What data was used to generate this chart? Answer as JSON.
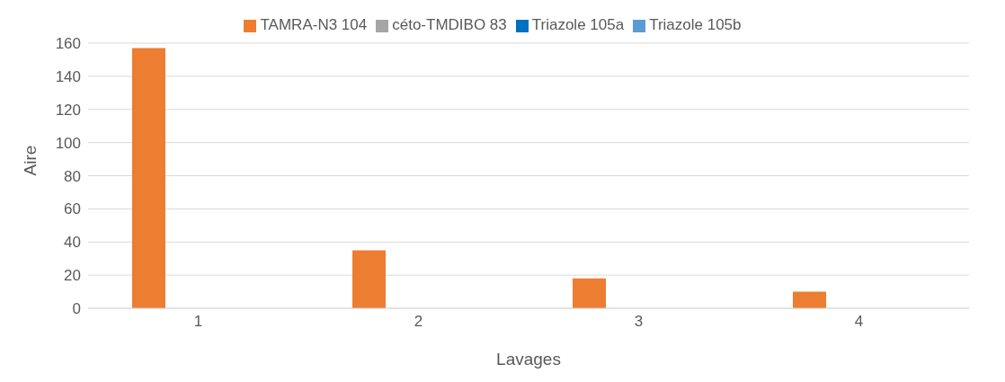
{
  "chart_data": {
    "type": "bar",
    "xlabel": "Lavages",
    "ylabel": "Aire",
    "categories": [
      "1",
      "2",
      "3",
      "4"
    ],
    "series": [
      {
        "name": "TAMRA-N3 104",
        "color": "#ed7d31",
        "values": [
          157,
          35,
          18,
          10
        ]
      },
      {
        "name": "céto-TMDIBO 83",
        "color": "#a5a5a5",
        "values": [
          0,
          0,
          0,
          0
        ]
      },
      {
        "name": "Triazole 105a",
        "color": "#0070c0",
        "values": [
          0,
          0,
          0,
          0
        ]
      },
      {
        "name": "Triazole 105b",
        "color": "#5b9bd5",
        "values": [
          0,
          0,
          0,
          0
        ]
      }
    ],
    "ylim": [
      0,
      160
    ],
    "yticks": [
      0,
      20,
      40,
      60,
      80,
      100,
      120,
      140,
      160
    ],
    "grid": "y",
    "legend": "top"
  }
}
